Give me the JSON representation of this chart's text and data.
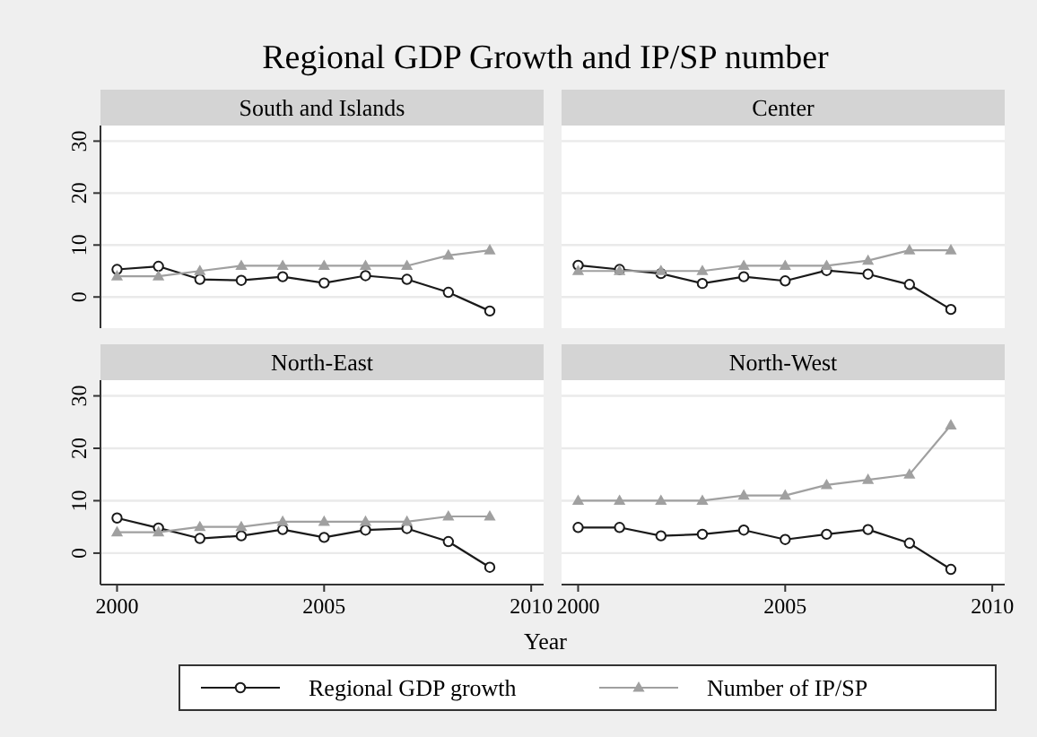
{
  "chart_data": [
    {
      "type": "line",
      "title": "Regional GDP Growth and IP/SP number",
      "subtitle": "South and Islands",
      "x": [
        2000,
        2001,
        2002,
        2003,
        2004,
        2005,
        2006,
        2007,
        2008,
        2009
      ],
      "xlim": [
        1999.6,
        2010.3
      ],
      "ylim": [
        -6,
        33
      ],
      "yticks": [
        0,
        10,
        20,
        30
      ],
      "grid": "y",
      "tick_labels": "y",
      "legend": "bottom",
      "series": [
        {
          "name": "Regional GDP growth",
          "color": "#1a1a1a",
          "marker": "circle",
          "values": [
            5.3,
            5.9,
            3.4,
            3.2,
            3.9,
            2.7,
            4.1,
            3.4,
            0.9,
            -2.7
          ]
        },
        {
          "name": "Number of IP/SP",
          "color": "#a0a0a0",
          "marker": "triangle",
          "values": [
            4,
            4,
            5,
            6,
            6,
            6,
            6,
            6,
            8,
            9
          ]
        }
      ]
    },
    {
      "type": "line",
      "subtitle": "Center",
      "x": [
        2000,
        2001,
        2002,
        2003,
        2004,
        2005,
        2006,
        2007,
        2008,
        2009
      ],
      "xlim": [
        1999.6,
        2010.3
      ],
      "ylim": [
        -6,
        33
      ],
      "yticks": [
        0,
        10,
        20,
        30
      ],
      "grid": "y",
      "tick_labels": false,
      "series": [
        {
          "color": "#1a1a1a",
          "marker": "circle",
          "values": [
            6.1,
            5.3,
            4.5,
            2.6,
            3.9,
            3.1,
            5.1,
            4.4,
            2.4,
            -2.4
          ]
        },
        {
          "color": "#a0a0a0",
          "marker": "triangle",
          "values": [
            5,
            5,
            5,
            5,
            6,
            6,
            6,
            7,
            9,
            9
          ]
        }
      ]
    },
    {
      "type": "line",
      "subtitle": "North-East",
      "x": [
        2000,
        2001,
        2002,
        2003,
        2004,
        2005,
        2006,
        2007,
        2008,
        2009
      ],
      "xlim": [
        1999.6,
        2010.3
      ],
      "xticks": [
        2000,
        2005,
        2010
      ],
      "ylim": [
        -6,
        33
      ],
      "yticks": [
        0,
        10,
        20,
        30
      ],
      "grid": "y",
      "series": [
        {
          "color": "#1a1a1a",
          "marker": "circle",
          "values": [
            6.7,
            4.8,
            2.8,
            3.3,
            4.5,
            3.0,
            4.4,
            4.7,
            2.2,
            -2.7
          ]
        },
        {
          "color": "#a0a0a0",
          "marker": "triangle",
          "values": [
            4,
            4,
            5,
            5,
            6,
            6,
            6,
            6,
            7,
            7
          ]
        }
      ]
    },
    {
      "type": "line",
      "subtitle": "North-West",
      "xlabel": "Year",
      "x": [
        2000,
        2001,
        2002,
        2003,
        2004,
        2005,
        2006,
        2007,
        2008,
        2009
      ],
      "xlim": [
        1999.6,
        2010.3
      ],
      "xticks": [
        2000,
        2005,
        2010
      ],
      "ylim": [
        -6,
        33
      ],
      "yticks": [
        0,
        10,
        20,
        30
      ],
      "grid": "y",
      "tick_labels": "x",
      "series": [
        {
          "color": "#1a1a1a",
          "marker": "circle",
          "values": [
            4.9,
            4.9,
            3.3,
            3.6,
            4.4,
            2.6,
            3.6,
            4.5,
            1.9,
            -3.1
          ]
        },
        {
          "color": "#a0a0a0",
          "marker": "triangle",
          "values": [
            10,
            10,
            10,
            10,
            11,
            11,
            13,
            14,
            15,
            24.4
          ]
        }
      ]
    }
  ]
}
